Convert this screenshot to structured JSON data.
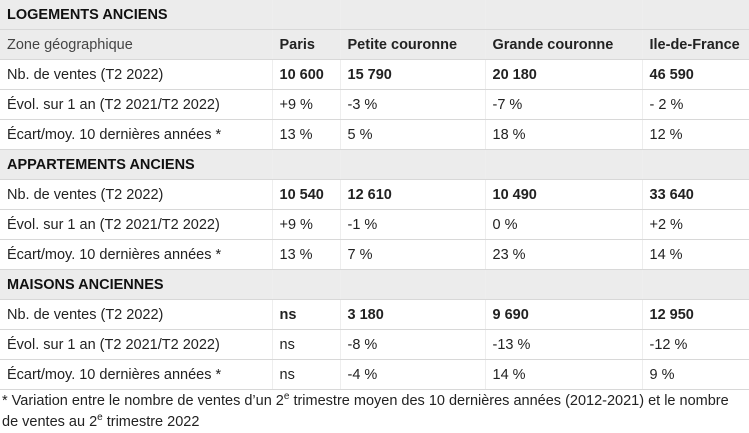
{
  "header": {
    "columns": [
      "Zone géographique",
      "Paris",
      "Petite couronne",
      "Grande couronne",
      "Ile-de-France"
    ]
  },
  "sections": [
    {
      "title": "LOGEMENTS ANCIENS",
      "rows": [
        [
          "Nb. de ventes (T2 2022)",
          "10 600",
          "15 790",
          "20 180",
          "46 590"
        ],
        [
          "Évol. sur 1 an (T2 2021/T2 2022)",
          "+9 %",
          "-3 %",
          "-7 %",
          "- 2 %"
        ],
        [
          "Écart/moy. 10 dernières années *",
          "13 %",
          "5 %",
          "18 %",
          "12 %"
        ]
      ]
    },
    {
      "title": "APPARTEMENTS ANCIENS",
      "rows": [
        [
          "Nb. de ventes (T2 2022)",
          "10 540",
          "12 610",
          "10 490",
          "33 640"
        ],
        [
          "Évol. sur 1 an (T2 2021/T2 2022)",
          "+9 %",
          "-1 %",
          "0 %",
          "+2 %"
        ],
        [
          "Écart/moy. 10 dernières années *",
          "13 %",
          "7 %",
          "23 %",
          "14 %"
        ]
      ]
    },
    {
      "title": "MAISONS ANCIENNES",
      "rows": [
        [
          "Nb. de ventes (T2 2022)",
          "ns",
          "3 180",
          "9 690",
          "12 950"
        ],
        [
          "Évol. sur 1 an (T2 2021/T2 2022)",
          "ns",
          "-8 %",
          "-13 %",
          "-12 %"
        ],
        [
          "Écart/moy. 10 dernières années *",
          "ns",
          "-4 %",
          "14 %",
          "9 %"
        ]
      ]
    }
  ],
  "footnote": [
    "* Variation entre le nombre de ventes d’un 2",
    "e",
    " trimestre moyen des 10 dernières années (2012-2021) et le nombre de ventes au 2",
    "e",
    " trimestre 2022"
  ]
}
